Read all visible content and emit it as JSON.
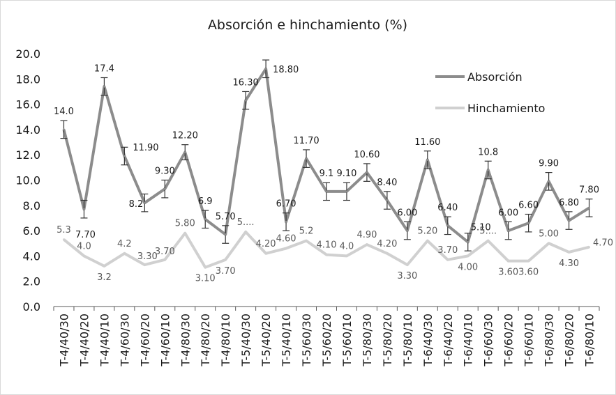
{
  "chart_data": {
    "type": "line",
    "title": "Absorción e hinchamiento (%)",
    "xlabel": "",
    "ylabel": "",
    "ylim": [
      0,
      20
    ],
    "yticks": [
      "0.0",
      "2.0",
      "4.0",
      "6.0",
      "8.0",
      "10.0",
      "12.0",
      "14.0",
      "16.0",
      "18.0",
      "20.0"
    ],
    "grid": false,
    "legend_position": "top-right",
    "categories": [
      "T-4/40/30",
      "T-4/40/20",
      "T-4/40/10",
      "T-4/60/30",
      "T-4/60/20",
      "T-4/60/10",
      "T-4/80/30",
      "T-4/80/20",
      "T-4/80/10",
      "T-5/40/30",
      "T-5/40/20",
      "T-5/40/10",
      "T-5/60/30",
      "T-5/60/20",
      "T-5/60/10",
      "T-5/80/30",
      "T-5/80/20",
      "T-5/80/10",
      "T-6/40/30",
      "T-6/40/20",
      "T-6/40/10",
      "T-6/60/30",
      "T-6/60/20",
      "T-6/60/10",
      "T-6/80/30",
      "T-6/80/20",
      "T-6/80/10"
    ],
    "series": [
      {
        "name": "Absorción",
        "color": "#8c8c8c",
        "values": [
          14.0,
          7.7,
          17.4,
          11.9,
          8.2,
          9.3,
          12.2,
          6.9,
          5.7,
          16.3,
          18.8,
          6.7,
          11.7,
          9.1,
          9.1,
          10.6,
          8.4,
          6.0,
          11.6,
          6.4,
          5.1,
          10.8,
          6.0,
          6.6,
          9.9,
          6.8,
          7.8
        ],
        "labels": [
          "14.0",
          "7.70",
          "17.4",
          "11.90",
          "8.2",
          "9.30",
          "12.20",
          "6.9",
          "5.70",
          "16.30",
          "18.80",
          "6.70",
          "11.70",
          "9.1",
          "9.10",
          "10.60",
          "8.40",
          "6.00",
          "11.60",
          "6.40",
          "5.10",
          "10.8",
          "6.00",
          "6.60",
          "9.90",
          "6.80",
          "7.80"
        ],
        "error": [
          0.7,
          0.7,
          0.7,
          0.7,
          0.7,
          0.7,
          0.6,
          0.7,
          0.7,
          0.7,
          0.7,
          0.7,
          0.7,
          0.7,
          0.7,
          0.7,
          0.7,
          0.7,
          0.7,
          0.7,
          0.7,
          0.7,
          0.7,
          0.7,
          0.7,
          0.7,
          0.7
        ]
      },
      {
        "name": "Hinchamiento",
        "color": "#d0d0d0",
        "values": [
          5.3,
          4.0,
          3.2,
          4.2,
          3.3,
          3.7,
          5.8,
          3.1,
          3.7,
          5.9,
          4.2,
          4.6,
          5.2,
          4.1,
          4.0,
          4.9,
          4.2,
          3.3,
          5.2,
          3.7,
          4.0,
          5.2,
          3.6,
          3.6,
          5.0,
          4.3,
          4.7
        ],
        "labels": [
          "5.3",
          "4.0",
          "3.2",
          "4.2",
          "3.30",
          "3.70",
          "5.80",
          "3.10",
          "3.70",
          "5....",
          "4.20",
          "4.60",
          "5.2",
          "4.10",
          "4.0",
          "4.90",
          "4.20",
          "3.30",
          "5.20",
          "3.70",
          "4.00",
          "5....",
          "3.60",
          "3.60",
          "5.00",
          "4.30",
          "4.70"
        ]
      }
    ]
  }
}
